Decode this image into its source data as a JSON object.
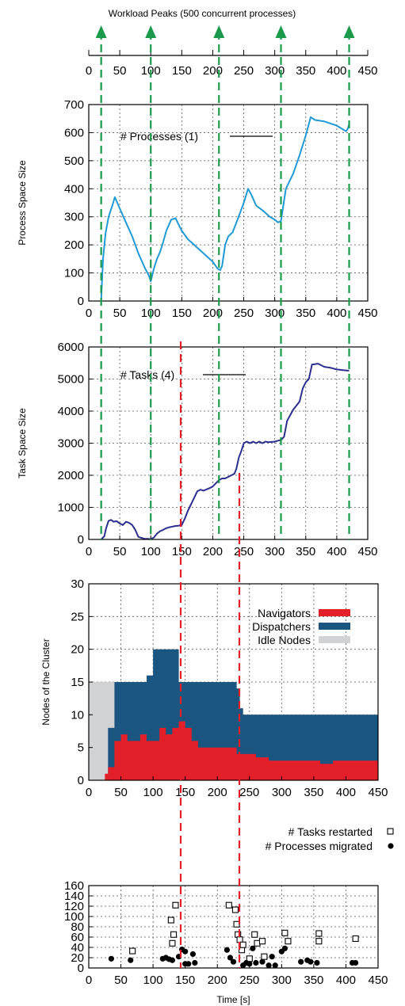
{
  "colors": {
    "process_line": "#1f9ad6",
    "task_line": "#2b2e8f",
    "navigators": "#e3202a",
    "dispatchers": "#1b5680",
    "idle_nodes": "#d0d2d3",
    "peak_arrow": "#1a9a4a",
    "red_dash": "#e3202a",
    "grid": "#555555"
  },
  "chart_data": [
    {
      "type": "timeline",
      "title": "Workload Peaks (500 concurrent processes)",
      "xlim": [
        0,
        450
      ],
      "x_ticks": [
        "0",
        "50",
        "100",
        "150",
        "200",
        "250",
        "300",
        "350",
        "400",
        "450"
      ],
      "peaks": [
        20,
        100,
        210,
        310,
        420
      ]
    },
    {
      "type": "line",
      "ylabel": "Process Space Size",
      "xlim": [
        0,
        450
      ],
      "ylim": [
        0,
        700
      ],
      "x_ticks": [
        "0",
        "50",
        "100",
        "150",
        "200",
        "250",
        "300",
        "350",
        "400",
        "450"
      ],
      "y_ticks": [
        "0",
        "100",
        "200",
        "300",
        "400",
        "500",
        "600",
        "700"
      ],
      "grid": true,
      "series": [
        {
          "name": "# Processes (1)",
          "x": [
            20,
            23,
            27,
            32,
            38,
            42,
            50,
            60,
            70,
            80,
            90,
            97,
            100,
            105,
            110,
            115,
            120,
            125,
            133,
            140,
            150,
            160,
            170,
            180,
            190,
            200,
            208,
            212,
            215,
            220,
            225,
            232,
            240,
            250,
            257,
            262,
            270,
            282,
            292,
            300,
            305,
            310,
            318,
            330,
            340,
            350,
            358,
            365,
            380,
            400,
            415,
            418,
            420
          ],
          "y": [
            0,
            150,
            240,
            300,
            340,
            370,
            330,
            280,
            230,
            170,
            120,
            90,
            70,
            115,
            150,
            175,
            210,
            250,
            290,
            295,
            250,
            220,
            200,
            180,
            160,
            140,
            115,
            110,
            125,
            200,
            230,
            245,
            290,
            350,
            400,
            380,
            340,
            320,
            300,
            290,
            280,
            285,
            400,
            455,
            520,
            590,
            655,
            645,
            640,
            625,
            605,
            615,
            630
          ]
        }
      ]
    },
    {
      "type": "line",
      "ylabel": "Task Space Size",
      "xlim": [
        0,
        450
      ],
      "ylim": [
        0,
        6000
      ],
      "x_ticks": [
        "0",
        "50",
        "100",
        "150",
        "200",
        "250",
        "300",
        "350",
        "400",
        "450"
      ],
      "y_ticks": [
        "0",
        "1000",
        "2000",
        "3000",
        "4000",
        "5000",
        "6000"
      ],
      "grid": true,
      "series": [
        {
          "name": "# Tasks (4)",
          "x": [
            20,
            25,
            28,
            32,
            36,
            40,
            45,
            50,
            55,
            60,
            65,
            70,
            75,
            80,
            90,
            95,
            100,
            105,
            110,
            115,
            120,
            125,
            130,
            135,
            140,
            145,
            150,
            155,
            160,
            165,
            170,
            175,
            180,
            185,
            190,
            195,
            200,
            205,
            210,
            215,
            220,
            225,
            230,
            235,
            238,
            242,
            246,
            250,
            255,
            260,
            265,
            270,
            275,
            280,
            285,
            290,
            300,
            305,
            310,
            315,
            320,
            330,
            340,
            345,
            350,
            355,
            360,
            370,
            380,
            390,
            400,
            410,
            420
          ],
          "y": [
            0,
            100,
            350,
            580,
            610,
            550,
            570,
            500,
            450,
            550,
            520,
            450,
            300,
            80,
            20,
            20,
            10,
            60,
            180,
            260,
            300,
            350,
            380,
            400,
            420,
            430,
            450,
            650,
            900,
            1100,
            1300,
            1500,
            1550,
            1520,
            1560,
            1600,
            1650,
            1750,
            1850,
            1900,
            1900,
            1950,
            2000,
            2050,
            2200,
            2550,
            2750,
            3000,
            3050,
            3000,
            3050,
            3000,
            3050,
            3000,
            3050,
            3030,
            3050,
            3080,
            3100,
            3200,
            3700,
            4050,
            4300,
            4700,
            4900,
            5000,
            5450,
            5480,
            5380,
            5350,
            5300,
            5280,
            5260
          ]
        }
      ]
    },
    {
      "type": "area",
      "ylabel": "Nodes of the Cluster",
      "xlim": [
        0,
        450
      ],
      "ylim": [
        0,
        30
      ],
      "x_ticks": [
        "0",
        "50",
        "100",
        "150",
        "200",
        "250",
        "300",
        "350",
        "400",
        "450"
      ],
      "y_ticks": [
        "0",
        "5",
        "10",
        "15",
        "20",
        "25",
        "30"
      ],
      "grid": true,
      "legend": "top-right",
      "series": [
        {
          "name": "Navigators",
          "x": [
            0,
            20,
            25,
            30,
            40,
            50,
            60,
            70,
            80,
            90,
            100,
            110,
            120,
            130,
            140,
            150,
            160,
            170,
            180,
            190,
            200,
            210,
            220,
            230,
            235,
            240,
            260,
            280,
            300,
            320,
            340,
            360,
            380,
            400,
            420,
            440,
            450
          ],
          "values": [
            0,
            0,
            1,
            2,
            6,
            7,
            6,
            6,
            7,
            6,
            6,
            8,
            7,
            8,
            9,
            8,
            6,
            5,
            5,
            5,
            5,
            5,
            5,
            4,
            4,
            4,
            3.5,
            3,
            3,
            3,
            3,
            2.5,
            3,
            3,
            3,
            3,
            3
          ]
        },
        {
          "name": "Dispatchers",
          "x": [
            0,
            20,
            25,
            30,
            40,
            50,
            60,
            70,
            80,
            90,
            100,
            110,
            120,
            130,
            140,
            150,
            160,
            170,
            180,
            190,
            200,
            210,
            220,
            230,
            235,
            240,
            260,
            280,
            300,
            320,
            340,
            360,
            380,
            400,
            420,
            440,
            450
          ],
          "values": [
            0,
            0,
            0,
            8,
            15,
            15,
            15,
            15,
            15,
            16,
            20,
            20,
            20,
            20,
            15,
            15,
            15,
            15,
            15,
            15,
            15,
            15,
            15,
            14,
            11,
            10,
            10,
            10,
            10,
            10,
            10,
            10,
            10,
            10,
            10,
            10,
            10
          ]
        },
        {
          "name": "Idle Nodes",
          "x": [
            0,
            20,
            25,
            30,
            40,
            50,
            60,
            70,
            80,
            90,
            100,
            110,
            120,
            130,
            140,
            150,
            160,
            170,
            180,
            190,
            200,
            210,
            220,
            230,
            235,
            240,
            260,
            280,
            300,
            320,
            340,
            360,
            380,
            400,
            420,
            440,
            450
          ],
          "values": [
            15,
            15,
            15,
            15,
            15,
            15,
            15,
            15,
            15,
            16,
            20,
            20,
            20,
            20,
            15,
            15,
            15,
            15,
            15,
            15,
            15,
            15,
            15,
            14,
            11,
            10,
            10,
            10,
            10,
            10,
            10,
            10,
            10,
            10,
            10,
            10,
            10
          ]
        }
      ]
    },
    {
      "type": "scatter",
      "xlabel": "Time [s]",
      "xlim": [
        0,
        450
      ],
      "ylim": [
        0,
        160
      ],
      "x_ticks": [
        "0",
        "50",
        "100",
        "150",
        "200",
        "250",
        "300",
        "350",
        "400",
        "450"
      ],
      "y_ticks": [
        "0",
        "20",
        "40",
        "60",
        "80",
        "100",
        "120",
        "140",
        "160"
      ],
      "grid": true,
      "legend": "top-right",
      "series": [
        {
          "name": "# Tasks restarted",
          "marker": "open-square",
          "x": [
            68,
            128,
            130,
            132,
            135,
            218,
            228,
            230,
            232,
            235,
            238,
            240,
            250,
            258,
            262,
            270,
            273,
            305,
            310,
            358,
            358,
            415
          ],
          "y": [
            33,
            93,
            48,
            65,
            122,
            122,
            113,
            85,
            65,
            55,
            35,
            45,
            18,
            65,
            48,
            52,
            22,
            68,
            52,
            67,
            52,
            57
          ]
        },
        {
          "name": "# Processes migrated",
          "marker": "filled-circle",
          "x": [
            35,
            65,
            115,
            120,
            125,
            130,
            140,
            145,
            150,
            150,
            155,
            162,
            165,
            215,
            220,
            225,
            240,
            245,
            250,
            255,
            260,
            270,
            280,
            285,
            290,
            300,
            305,
            330,
            340,
            345,
            355,
            410,
            415
          ],
          "y": [
            18,
            15,
            18,
            20,
            17,
            15,
            22,
            36,
            8,
            32,
            8,
            27,
            10,
            35,
            20,
            12,
            5,
            10,
            8,
            38,
            10,
            12,
            5,
            22,
            5,
            32,
            38,
            12,
            15,
            12,
            10,
            10,
            10
          ]
        }
      ]
    }
  ]
}
